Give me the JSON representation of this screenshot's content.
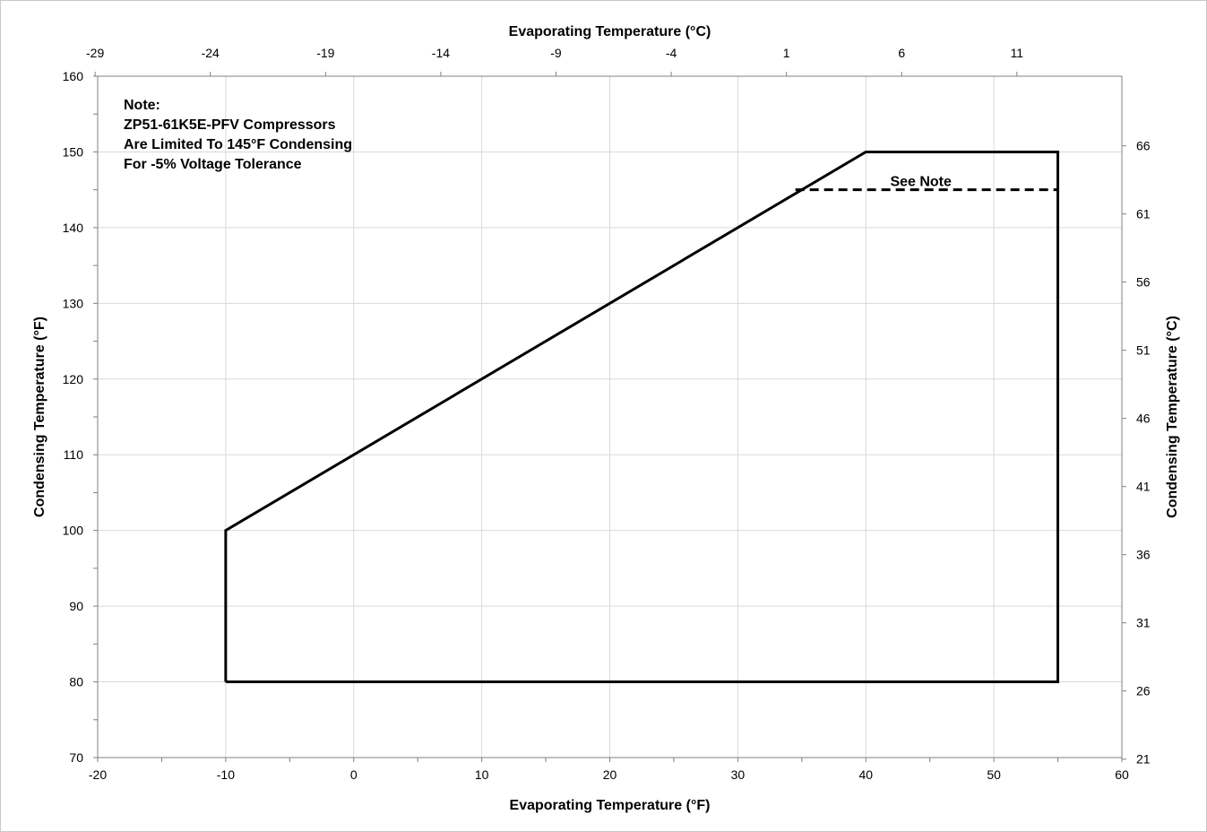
{
  "chart_data": {
    "type": "line",
    "title": "",
    "xlabel": "Evaporating Temperature (°F)",
    "ylabel": "Condensing Temperature (°F)",
    "x2label": "Evaporating Temperature (°C)",
    "y2label": "Condensing Temperature (°C)",
    "xlim": [
      -20,
      60
    ],
    "ylim": [
      70,
      160
    ],
    "x_ticks": [
      -20,
      -10,
      0,
      10,
      20,
      30,
      40,
      50,
      60
    ],
    "y_ticks": [
      70,
      80,
      90,
      100,
      110,
      120,
      130,
      140,
      150,
      160
    ],
    "x2_ticks": [
      -29,
      -24,
      -19,
      -14,
      -9,
      -4,
      1,
      6,
      11
    ],
    "y2_ticks": [
      21,
      26,
      31,
      36,
      41,
      46,
      51,
      56,
      61,
      66
    ],
    "grid": true,
    "series": [
      {
        "style": "solid",
        "x": [
          -10,
          -10,
          40,
          55,
          55,
          -10
        ],
        "y": [
          80,
          100,
          150,
          150,
          80,
          80
        ]
      },
      {
        "style": "dashed",
        "x": [
          34.5,
          55
        ],
        "y": [
          145,
          145
        ]
      }
    ],
    "annotations": [
      {
        "text": "See Note",
        "x": 44.3,
        "y": 145
      }
    ],
    "note": {
      "lines": [
        "Note:",
        "ZP51-61K5E-PFV Compressors",
        "Are Limited To 145°F Condensing",
        "For -5% Voltage Tolerance"
      ]
    }
  }
}
